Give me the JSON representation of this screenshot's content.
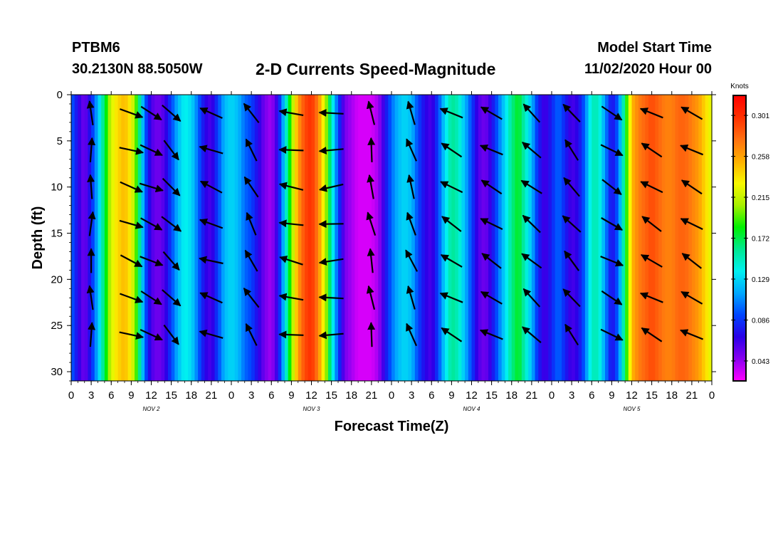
{
  "header": {
    "station": "PTBM6",
    "coords": "30.2130N 88.5050W",
    "title": "2-D Currents Speed-Magnitude",
    "start_label": "Model Start Time",
    "start_time": "11/02/2020 Hour 00"
  },
  "chart_data": {
    "type": "heatmap",
    "title": "2-D Currents Speed-Magnitude",
    "xlabel": "Forecast Time(Z)",
    "ylabel": "Depth (ft)",
    "x_tick_labels": [
      "0",
      "3",
      "6",
      "9",
      "12",
      "15",
      "18",
      "21",
      "0",
      "3",
      "6",
      "9",
      "12",
      "15",
      "18",
      "21",
      "0",
      "3",
      "6",
      "9",
      "12",
      "15",
      "18",
      "21",
      "0",
      "3",
      "6",
      "9",
      "12",
      "15",
      "18",
      "21",
      "0"
    ],
    "day_labels": [
      "NOV  2",
      "NOV  3",
      "NOV  4",
      "NOV  5"
    ],
    "x_range_hours": [
      0,
      96
    ],
    "y_tick_labels": [
      "0",
      "5",
      "10",
      "15",
      "20",
      "25",
      "30"
    ],
    "ylim_ft": [
      0,
      31
    ],
    "y_inverted": true,
    "colorbar": {
      "unit": "Knots",
      "labels": [
        "0.301",
        "0.258",
        "0.215",
        "0.172",
        "0.129",
        "0.086",
        "0.043"
      ],
      "range": [
        0.022,
        0.322
      ],
      "colors": [
        "#ff00ff",
        "#8a00f0",
        "#2a00e8",
        "#0044ff",
        "#00a8ff",
        "#00f0f0",
        "#00e890",
        "#00f000",
        "#a8f000",
        "#f8f800",
        "#ffb000",
        "#ff7010",
        "#ff3000",
        "#ff0000"
      ]
    },
    "speed_by_hour": [
      {
        "h": 0,
        "v": 0.1
      },
      {
        "h": 1,
        "v": 0.07
      },
      {
        "h": 2,
        "v": 0.05
      },
      {
        "h": 3,
        "v": 0.08
      },
      {
        "h": 4,
        "v": 0.12
      },
      {
        "h": 5,
        "v": 0.17
      },
      {
        "h": 6,
        "v": 0.22
      },
      {
        "h": 7,
        "v": 0.24
      },
      {
        "h": 8,
        "v": 0.25
      },
      {
        "h": 9,
        "v": 0.23
      },
      {
        "h": 10,
        "v": 0.18
      },
      {
        "h": 11,
        "v": 0.1
      },
      {
        "h": 12,
        "v": 0.06
      },
      {
        "h": 13,
        "v": 0.05
      },
      {
        "h": 14,
        "v": 0.06
      },
      {
        "h": 15,
        "v": 0.09
      },
      {
        "h": 16,
        "v": 0.12
      },
      {
        "h": 17,
        "v": 0.14
      },
      {
        "h": 18,
        "v": 0.13
      },
      {
        "h": 19,
        "v": 0.1
      },
      {
        "h": 20,
        "v": 0.07
      },
      {
        "h": 21,
        "v": 0.06
      },
      {
        "h": 22,
        "v": 0.09
      },
      {
        "h": 23,
        "v": 0.12
      },
      {
        "h": 24,
        "v": 0.13
      },
      {
        "h": 25,
        "v": 0.12
      },
      {
        "h": 26,
        "v": 0.1
      },
      {
        "h": 27,
        "v": 0.09
      },
      {
        "h": 28,
        "v": 0.07
      },
      {
        "h": 29,
        "v": 0.05
      },
      {
        "h": 30,
        "v": 0.04
      },
      {
        "h": 31,
        "v": 0.07
      },
      {
        "h": 32,
        "v": 0.13
      },
      {
        "h": 33,
        "v": 0.2
      },
      {
        "h": 34,
        "v": 0.26
      },
      {
        "h": 35,
        "v": 0.29
      },
      {
        "h": 36,
        "v": 0.3
      },
      {
        "h": 37,
        "v": 0.27
      },
      {
        "h": 38,
        "v": 0.22
      },
      {
        "h": 39,
        "v": 0.15
      },
      {
        "h": 40,
        "v": 0.09
      },
      {
        "h": 41,
        "v": 0.05
      },
      {
        "h": 42,
        "v": 0.04
      },
      {
        "h": 43,
        "v": 0.03
      },
      {
        "h": 44,
        "v": 0.03
      },
      {
        "h": 45,
        "v": 0.03
      },
      {
        "h": 46,
        "v": 0.04
      },
      {
        "h": 47,
        "v": 0.07
      },
      {
        "h": 48,
        "v": 0.1
      },
      {
        "h": 49,
        "v": 0.12
      },
      {
        "h": 50,
        "v": 0.13
      },
      {
        "h": 51,
        "v": 0.12
      },
      {
        "h": 52,
        "v": 0.09
      },
      {
        "h": 53,
        "v": 0.07
      },
      {
        "h": 54,
        "v": 0.06
      },
      {
        "h": 55,
        "v": 0.09
      },
      {
        "h": 56,
        "v": 0.13
      },
      {
        "h": 57,
        "v": 0.16
      },
      {
        "h": 58,
        "v": 0.15
      },
      {
        "h": 59,
        "v": 0.12
      },
      {
        "h": 60,
        "v": 0.09
      },
      {
        "h": 61,
        "v": 0.06
      },
      {
        "h": 62,
        "v": 0.05
      },
      {
        "h": 63,
        "v": 0.07
      },
      {
        "h": 64,
        "v": 0.1
      },
      {
        "h": 65,
        "v": 0.13
      },
      {
        "h": 66,
        "v": 0.16
      },
      {
        "h": 67,
        "v": 0.18
      },
      {
        "h": 68,
        "v": 0.15
      },
      {
        "h": 69,
        "v": 0.12
      },
      {
        "h": 70,
        "v": 0.08
      },
      {
        "h": 71,
        "v": 0.06
      },
      {
        "h": 72,
        "v": 0.08
      },
      {
        "h": 73,
        "v": 0.1
      },
      {
        "h": 74,
        "v": 0.08
      },
      {
        "h": 75,
        "v": 0.06
      },
      {
        "h": 76,
        "v": 0.07
      },
      {
        "h": 77,
        "v": 0.1
      },
      {
        "h": 78,
        "v": 0.15
      },
      {
        "h": 79,
        "v": 0.15
      },
      {
        "h": 80,
        "v": 0.11
      },
      {
        "h": 81,
        "v": 0.07
      },
      {
        "h": 82,
        "v": 0.1
      },
      {
        "h": 83,
        "v": 0.17
      },
      {
        "h": 84,
        "v": 0.25
      },
      {
        "h": 85,
        "v": 0.27
      },
      {
        "h": 86,
        "v": 0.28
      },
      {
        "h": 87,
        "v": 0.29
      },
      {
        "h": 88,
        "v": 0.28
      },
      {
        "h": 89,
        "v": 0.27
      },
      {
        "h": 90,
        "v": 0.27
      },
      {
        "h": 91,
        "v": 0.28
      },
      {
        "h": 92,
        "v": 0.28
      },
      {
        "h": 93,
        "v": 0.27
      },
      {
        "h": 94,
        "v": 0.26
      },
      {
        "h": 95,
        "v": 0.24
      },
      {
        "h": 96,
        "v": 0.22
      }
    ],
    "vectors": {
      "hours": [
        3,
        9,
        12,
        15,
        21,
        27,
        33,
        39,
        45,
        51,
        57,
        63,
        69,
        75,
        81,
        87,
        93
      ],
      "depths_ft": [
        2,
        6,
        10,
        14,
        18,
        22,
        26
      ],
      "direction_deg_by_hour": [
        0,
        110,
        115,
        135,
        290,
        330,
        280,
        265,
        350,
        340,
        300,
        300,
        310,
        320,
        120,
        300,
        300
      ]
    }
  }
}
